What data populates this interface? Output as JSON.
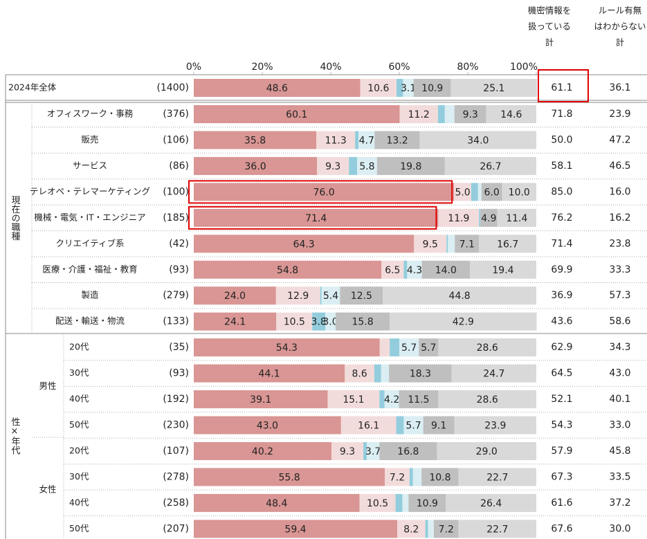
{
  "chart_data": {
    "type": "stacked_barh",
    "xlim": [
      0,
      100
    ],
    "xticks": [
      {
        "value": 0,
        "label": "0%"
      },
      {
        "value": 20,
        "label": "20%"
      },
      {
        "value": 40,
        "label": "40%"
      },
      {
        "value": 60,
        "label": "60%"
      },
      {
        "value": 80,
        "label": "80%"
      },
      {
        "value": 100,
        "label": "100%"
      }
    ],
    "categories": [
      "2024年全体",
      "オフィスワーク・事務",
      "販売",
      "サービス",
      "テレオペ・テレマーケティング",
      "機械・電気・IT・エンジニア",
      "クリエイティブ系",
      "医療・介護・福祉・教育",
      "製造",
      "配送・輸送・物流",
      "20代",
      "30代",
      "40代",
      "50代",
      "20代",
      "30代",
      "40代",
      "50代"
    ],
    "n_labels": [
      "(1400)",
      "(376)",
      "(106)",
      "(86)",
      "(100)",
      "(185)",
      "(42)",
      "(93)",
      "(279)",
      "(133)",
      "(35)",
      "(93)",
      "(192)",
      "(230)",
      "(107)",
      "(278)",
      "(258)",
      "(207)"
    ],
    "row_groups": [
      "現在の職種",
      "性×年代"
    ],
    "sub_groups": [
      "男性",
      "女性"
    ],
    "series": [
      {
        "color": "#d99694",
        "values": [
          48.6,
          60.1,
          35.8,
          36.0,
          76.0,
          71.4,
          64.3,
          54.8,
          24.0,
          24.1,
          54.3,
          44.1,
          39.1,
          43.0,
          40.2,
          55.8,
          48.4,
          59.4
        ],
        "value_labels": [
          "48.6",
          "60.1",
          "35.8",
          "36.0",
          "76.0",
          "71.4",
          "64.3",
          "54.8",
          "24.0",
          "24.1",
          "54.3",
          "44.1",
          "39.1",
          "43.0",
          "40.2",
          "55.8",
          "48.4",
          "59.4"
        ]
      },
      {
        "color": "#f2dcdb",
        "values": [
          10.6,
          11.2,
          11.3,
          9.3,
          5.0,
          11.9,
          9.5,
          6.5,
          12.9,
          10.5,
          2.9,
          8.6,
          15.1,
          16.1,
          9.3,
          7.2,
          10.5,
          8.2
        ],
        "value_labels": [
          "10.6",
          "11.2",
          "11.3",
          "9.3",
          "5.0",
          "11.9",
          "9.5",
          "6.5",
          "12.9",
          "10.5",
          null,
          "8.6",
          "15.1",
          "16.1",
          "9.3",
          "7.2",
          "10.5",
          "8.2"
        ]
      },
      {
        "color": "#93cddd",
        "values": [
          1.9,
          2.0,
          1.0,
          2.4,
          2.0,
          0.4,
          0.4,
          1.0,
          0.4,
          3.8,
          2.8,
          2.0,
          1.5,
          2.2,
          1.0,
          1.0,
          2.0,
          0.8
        ],
        "value_labels": [
          null,
          null,
          null,
          null,
          null,
          null,
          null,
          null,
          null,
          "3.8",
          null,
          null,
          null,
          null,
          null,
          null,
          null,
          null
        ]
      },
      {
        "color": "#daeef3",
        "values": [
          3.1,
          2.8,
          4.7,
          5.8,
          1.0,
          null,
          2.0,
          4.3,
          5.4,
          3.0,
          5.7,
          2.3,
          4.2,
          5.7,
          3.7,
          2.5,
          1.8,
          1.7
        ],
        "value_labels": [
          "3.1",
          null,
          "4.7",
          "5.8",
          null,
          null,
          null,
          "4.3",
          "5.4",
          "3.0",
          "5.7",
          null,
          "4.2",
          "5.7",
          "3.7",
          null,
          null,
          null
        ]
      },
      {
        "color": "#bfbfbf",
        "values": [
          10.9,
          9.3,
          13.2,
          19.8,
          6.0,
          4.9,
          7.1,
          14.0,
          12.5,
          15.8,
          5.7,
          18.3,
          11.5,
          9.1,
          16.8,
          10.8,
          10.9,
          7.2
        ],
        "value_labels": [
          "10.9",
          "9.3",
          "13.2",
          "19.8",
          "6.0",
          "4.9",
          "7.1",
          "14.0",
          "12.5",
          "15.8",
          "5.7",
          "18.3",
          "11.5",
          "9.1",
          "16.8",
          "10.8",
          "10.9",
          "7.2"
        ]
      },
      {
        "color": "#d9d9d9",
        "values": [
          25.1,
          14.6,
          34.0,
          26.7,
          10.0,
          11.4,
          16.7,
          19.4,
          44.8,
          42.9,
          28.6,
          24.7,
          28.6,
          23.9,
          29.0,
          22.7,
          26.4,
          22.7
        ],
        "value_labels": [
          "25.1",
          "14.6",
          "34.0",
          "26.7",
          "10.0",
          "11.4",
          "16.7",
          "19.4",
          "44.8",
          "42.9",
          "28.6",
          "24.7",
          "28.6",
          "23.9",
          "29.0",
          "22.7",
          "26.4",
          "22.7"
        ]
      }
    ],
    "totals": [
      {
        "header": [
          "機密情報を",
          "扱っている",
          "計"
        ],
        "values": [
          "61.1",
          "71.8",
          "50.0",
          "58.1",
          "85.0",
          "76.2",
          "71.4",
          "69.9",
          "36.9",
          "43.6",
          "62.9",
          "64.5",
          "52.1",
          "54.3",
          "57.9",
          "67.3",
          "61.6",
          "67.6"
        ]
      },
      {
        "header": [
          "ルール有無",
          "はわからない",
          "計"
        ],
        "values": [
          "36.1",
          "23.9",
          "47.2",
          "46.5",
          "16.0",
          "16.2",
          "23.8",
          "33.3",
          "57.3",
          "58.6",
          "34.3",
          "43.0",
          "40.1",
          "33.0",
          "45.8",
          "33.5",
          "37.2",
          "30.0"
        ]
      }
    ]
  }
}
